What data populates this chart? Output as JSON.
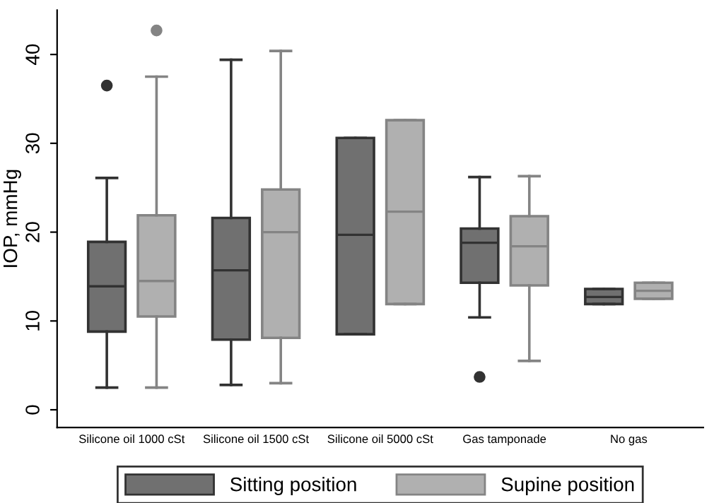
{
  "chart_data": {
    "type": "box",
    "ylabel": "IOP, mmHg",
    "categories": [
      "Silicone oil 1000 cSt",
      "Silicone oil 1500 cSt",
      "Silicone oil 5000 cSt",
      "Gas tamponade",
      "No gas"
    ],
    "ylim": [
      -2,
      45
    ],
    "yticks": [
      0,
      10,
      20,
      30,
      40
    ],
    "grid": false,
    "legend": "bottom",
    "series": [
      {
        "name": "Sitting position",
        "color": "#707070",
        "boxes": [
          {
            "low": 2.5,
            "q1": 8.8,
            "median": 13.9,
            "q3": 18.9,
            "high": 26.1,
            "outliers": [
              36.5
            ]
          },
          {
            "low": 2.8,
            "q1": 7.9,
            "median": 15.7,
            "q3": 21.6,
            "high": 39.4
          },
          {
            "low": 8.5,
            "q1": 8.5,
            "median": 19.7,
            "q3": 30.6,
            "high": 30.6
          },
          {
            "low": 10.4,
            "q1": 14.3,
            "median": 18.8,
            "q3": 20.4,
            "high": 26.2,
            "outliers": [
              3.7
            ]
          },
          {
            "low": 11.9,
            "q1": 11.9,
            "median": 12.7,
            "q3": 13.6,
            "high": 13.6
          }
        ]
      },
      {
        "name": "Supine position",
        "color": "#b0b0b0",
        "boxes": [
          {
            "low": 2.5,
            "q1": 10.5,
            "median": 14.5,
            "q3": 21.9,
            "high": 37.5,
            "outliers": [
              42.7
            ]
          },
          {
            "low": 3.0,
            "q1": 8.1,
            "median": 20.0,
            "q3": 24.8,
            "high": 40.4
          },
          {
            "low": 11.9,
            "q1": 11.9,
            "median": 22.3,
            "q3": 32.6,
            "high": 32.6
          },
          {
            "low": 5.5,
            "q1": 14.0,
            "median": 18.4,
            "q3": 21.8,
            "high": 26.3
          },
          {
            "low": 12.5,
            "q1": 12.5,
            "median": 13.4,
            "q3": 14.3,
            "high": 14.3
          }
        ]
      }
    ]
  }
}
